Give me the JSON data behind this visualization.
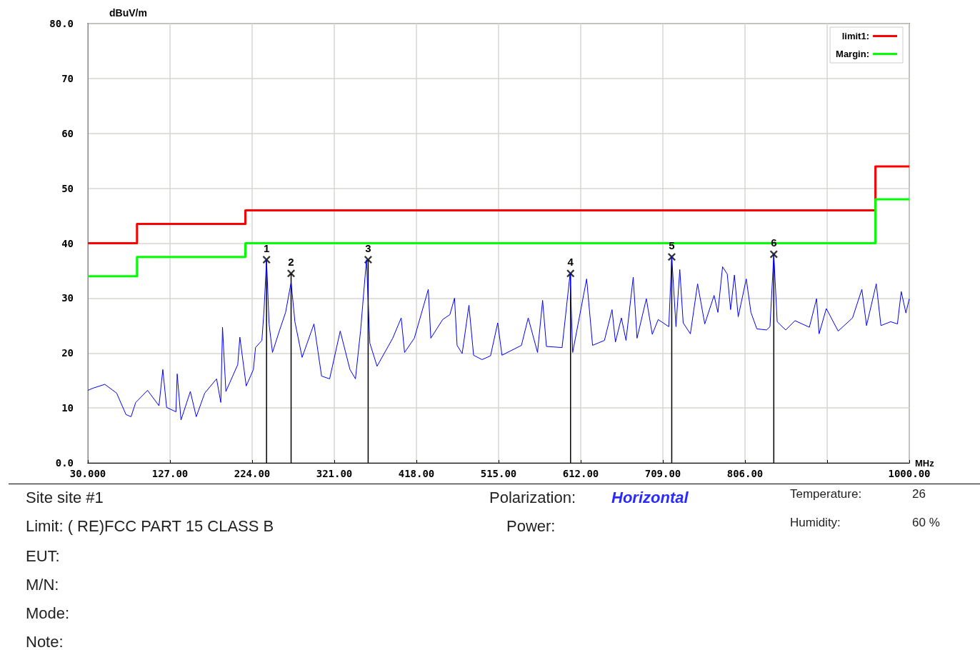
{
  "chart_data": {
    "type": "line",
    "xlabel": "MHz",
    "ylabel": "dBuV/m",
    "xlim": [
      30,
      1000
    ],
    "ylim": [
      0,
      80
    ],
    "xticks": [
      {
        "value": 30,
        "label": "30.000"
      },
      {
        "value": 127,
        "label": "127.00"
      },
      {
        "value": 224,
        "label": "224.00"
      },
      {
        "value": 321,
        "label": "321.00"
      },
      {
        "value": 418,
        "label": "418.00"
      },
      {
        "value": 515,
        "label": "515.00"
      },
      {
        "value": 612,
        "label": "612.00"
      },
      {
        "value": 709,
        "label": "709.00"
      },
      {
        "value": 806,
        "label": "806.00"
      },
      {
        "value": 903,
        "label": null
      },
      {
        "value": 1000,
        "label": "1000.00"
      }
    ],
    "yticks": [
      {
        "value": 0,
        "label": "0.0"
      },
      10,
      20,
      30,
      40,
      50,
      60,
      70,
      {
        "value": 80,
        "label": "80.0"
      }
    ],
    "grid": true,
    "legend": "top right",
    "series": [
      {
        "color": "#0000ff",
        "x": [
          30,
          36,
          50,
          64,
          75,
          81,
          86.5,
          100.5,
          114,
          118.5,
          123,
          134,
          135.5,
          140,
          151,
          158,
          168,
          182,
          187,
          189,
          193,
          207,
          209.5,
          217,
          225.5,
          228,
          235.5,
          238,
          241,
          244,
          248,
          256.5,
          263.5,
          270,
          274.5,
          283,
          297,
          306,
          315.5,
          328,
          339.5,
          346,
          352,
          359,
          363,
          371.5,
          390,
          400,
          404,
          415.5,
          432,
          435,
          449,
          457.5,
          463,
          466,
          472,
          480,
          485.5,
          495.5,
          505.5,
          514,
          519,
          542,
          550,
          561,
          567,
          571.5,
          590,
          599.5,
          602.5,
          619,
          626,
          640,
          649,
          653,
          660,
          665.5,
          674,
          678.5,
          689.5,
          696.5,
          703.5,
          716,
          719.5,
          724.5,
          729,
          733,
          741.5,
          750,
          758.5,
          769.5,
          774,
          779.5,
          785,
          789,
          793.5,
          798,
          807.5,
          813,
          820,
          831.5,
          835.5,
          840,
          844,
          854,
          865,
          882,
          890.5,
          893.5,
          902,
          916,
          933,
          944,
          949.5,
          961,
          966.5,
          978,
          986,
          990.5,
          996,
          1000
        ],
        "values": [
          13.2,
          13.6,
          14.3,
          12.7,
          8.8,
          8.4,
          11,
          13.2,
          10.4,
          17,
          10.1,
          9.3,
          16.2,
          7.8,
          13,
          8.4,
          12.7,
          15.3,
          11,
          24.7,
          13,
          17.9,
          22.9,
          14,
          17,
          21,
          22.3,
          27.7,
          37,
          25.3,
          20.1,
          24.2,
          27.4,
          32.9,
          25.7,
          19.2,
          25.3,
          15.8,
          15.3,
          24,
          17,
          15.3,
          24,
          37,
          21.8,
          17.6,
          22.7,
          26.4,
          20.1,
          22.7,
          31.6,
          22.7,
          26.1,
          27,
          30,
          21.4,
          19.9,
          28.7,
          19.6,
          18.8,
          19.5,
          25.5,
          19.6,
          21.4,
          26.4,
          20.1,
          29.6,
          21.2,
          21,
          34.5,
          20.1,
          33.5,
          21.4,
          22.3,
          27.9,
          22,
          26.4,
          22.3,
          33.8,
          22.7,
          29.9,
          23.4,
          26.1,
          24.8,
          37.5,
          24.8,
          35.2,
          25.5,
          23.5,
          32.6,
          25.3,
          30.5,
          27.4,
          35.7,
          34.4,
          27.9,
          34.2,
          26.6,
          33.5,
          27.4,
          24.4,
          24.2,
          24.8,
          38,
          25.7,
          24.2,
          25.9,
          24.7,
          29.9,
          23.5,
          28.1,
          24,
          26.4,
          31.6,
          25,
          32.6,
          25,
          25.7,
          25.3,
          31.2,
          27.3,
          29.9
        ]
      },
      {
        "type": "step",
        "name": "limit1:",
        "color": "#ff0000",
        "x": [
          30,
          88,
          216,
          960,
          1000
        ],
        "values": [
          40,
          43.5,
          46,
          54,
          54
        ]
      },
      {
        "type": "step",
        "name": "Margin:",
        "color": "#00ff00",
        "x": [
          30,
          88,
          216,
          960,
          1000
        ],
        "values": [
          34,
          37.5,
          40,
          48,
          48
        ]
      },
      {
        "type": "lollipop",
        "color": "#000000",
        "marker": "cross",
        "x": [
          241,
          270,
          361,
          600,
          719.5,
          840
        ],
        "values": [
          37,
          34.5,
          37,
          34.5,
          37.5,
          38
        ]
      }
    ],
    "annotations": [
      {
        "text": "1",
        "x": 241,
        "y": 37
      },
      {
        "text": "2",
        "x": 270,
        "y": 34.5
      },
      {
        "text": "3",
        "x": 361,
        "y": 37
      },
      {
        "text": "4",
        "x": 600,
        "y": 34.5
      },
      {
        "text": "5",
        "x": 719.5,
        "y": 37.5
      },
      {
        "text": "6",
        "x": 840,
        "y": 38
      },
      "Site  site #1",
      "Limit: ( RE)FCC PART 15 CLASS B",
      "EUT:",
      "M/N:",
      "Mode:",
      "Note:",
      "Polarization:",
      "Horizontal",
      "Power:",
      "Temperature:",
      "26",
      "Humidity:",
      "60 %"
    ]
  }
}
